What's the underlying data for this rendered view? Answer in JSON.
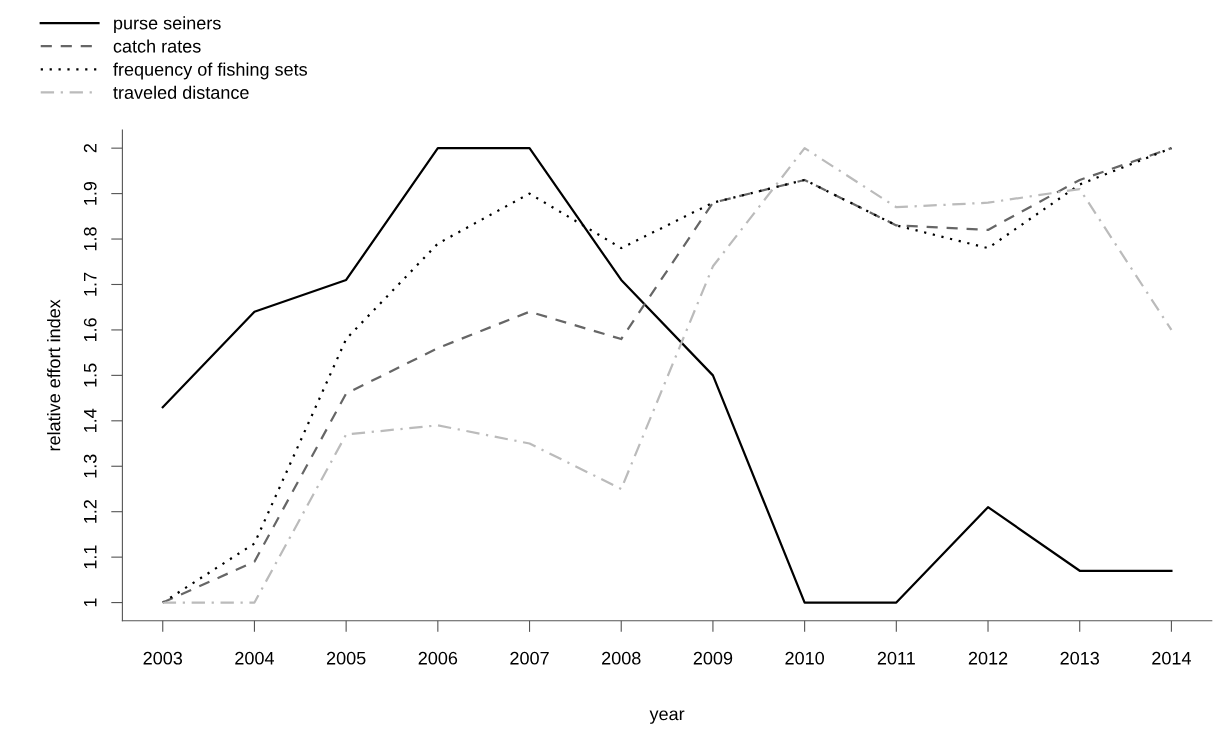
{
  "chart_data": {
    "type": "line",
    "xlabel": "year",
    "ylabel": "relative effort index",
    "x": [
      2003,
      2004,
      2005,
      2006,
      2007,
      2008,
      2009,
      2010,
      2011,
      2012,
      2013,
      2014
    ],
    "series": [
      {
        "name": "purse seiners",
        "color": "#000000",
        "line_style": "solid",
        "values": [
          1.43,
          1.64,
          1.71,
          2.0,
          2.0,
          1.71,
          1.5,
          1.0,
          1.0,
          1.21,
          1.07,
          1.07
        ]
      },
      {
        "name": "catch rates",
        "color": "#666666",
        "line_style": "dashed",
        "values": [
          1.0,
          1.09,
          1.46,
          1.56,
          1.64,
          1.58,
          1.88,
          1.93,
          1.83,
          1.82,
          1.93,
          2.0
        ]
      },
      {
        "name": "frequency of fishing sets",
        "color": "#000000",
        "line_style": "dotted",
        "values": [
          1.0,
          1.13,
          1.58,
          1.79,
          1.9,
          1.78,
          1.88,
          1.93,
          1.83,
          1.78,
          1.92,
          2.0
        ]
      },
      {
        "name": "traveled distance",
        "color": "#bbbbbb",
        "line_style": "dashdot",
        "values": [
          1.0,
          1.0,
          1.37,
          1.39,
          1.35,
          1.25,
          1.74,
          2.0,
          1.87,
          1.88,
          1.91,
          1.6
        ]
      }
    ],
    "xlim": [
      2002.56,
      2014.44
    ],
    "xticks": [
      2003,
      2004,
      2005,
      2006,
      2007,
      2008,
      2009,
      2010,
      2011,
      2012,
      2013,
      2014
    ],
    "ylim": [
      0.96,
      2.04
    ],
    "yticks": [
      1,
      1.1,
      1.2,
      1.3,
      1.4,
      1.5,
      1.6,
      1.7,
      1.8,
      1.9,
      2
    ],
    "grid": false,
    "legend": "top left",
    "marker": "none"
  }
}
